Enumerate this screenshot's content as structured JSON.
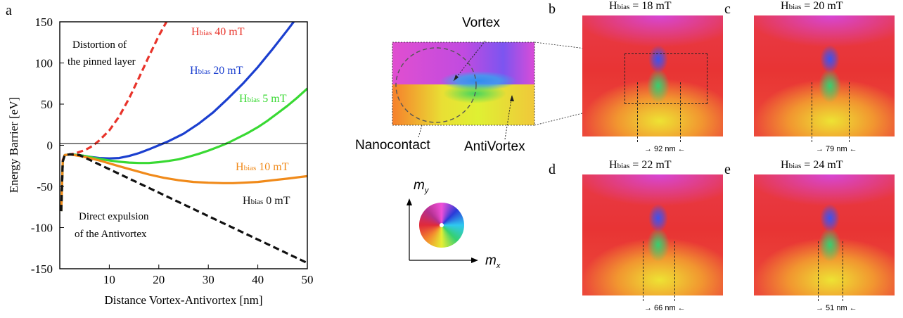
{
  "panel_letters": {
    "a": "a",
    "b": "b",
    "c": "c",
    "d": "d",
    "e": "e"
  },
  "chart_data": {
    "type": "line",
    "xlabel": "Distance Vortex-Antivortex [nm]",
    "ylabel": "Energy Barrier  [eV]",
    "xlim": [
      0,
      50
    ],
    "ylim": [
      -150,
      150
    ],
    "xticks": [
      "10",
      "20",
      "30",
      "40",
      "50"
    ],
    "yticks": [
      "150",
      "100",
      "50",
      "0",
      "-50",
      "-100",
      "-150"
    ],
    "series": [
      {
        "name_main": "H",
        "name_sub": "bias",
        "name_rest": " 40 mT",
        "color": "#e8332a",
        "dash": true,
        "x": [
          0.3,
          0.6,
          1,
          2,
          3,
          4,
          5,
          6,
          7,
          8,
          10,
          12,
          14,
          16,
          18,
          20,
          22
        ],
        "y": [
          -80,
          -18,
          -12,
          -11,
          -10,
          -8,
          -6,
          -3,
          1,
          6,
          18,
          35,
          57,
          82,
          108,
          133,
          155
        ]
      },
      {
        "name_main": "H",
        "name_sub": "bias",
        "name_rest": " 20 mT",
        "color": "#1b3fcf",
        "dash": false,
        "x": [
          0.3,
          0.6,
          1,
          2,
          4,
          6,
          8,
          10,
          12,
          14,
          16,
          18,
          20,
          22,
          25,
          28,
          31,
          34,
          37,
          40,
          43,
          46,
          48
        ],
        "y": [
          -80,
          -20,
          -12,
          -11,
          -12,
          -14,
          -15.5,
          -16,
          -15.5,
          -13,
          -9.5,
          -5,
          0,
          5,
          14,
          26,
          40,
          57,
          75,
          95,
          117,
          140,
          156
        ]
      },
      {
        "name_main": "H",
        "name_sub": "bias",
        "name_rest": "  5 mT",
        "color": "#39d933",
        "dash": false,
        "x": [
          0.3,
          0.6,
          1,
          2,
          4,
          6,
          8,
          10,
          12,
          14,
          16,
          18,
          20,
          22,
          24,
          26,
          28,
          30,
          32,
          34,
          36,
          38,
          40,
          42,
          44,
          46,
          48,
          50
        ],
        "y": [
          -80,
          -20,
          -12,
          -11,
          -12,
          -14,
          -16.5,
          -18.5,
          -20,
          -21,
          -21.5,
          -21.5,
          -20.5,
          -19,
          -17,
          -14,
          -10.5,
          -6.5,
          -2,
          3,
          9,
          15,
          22,
          30,
          39,
          48,
          58,
          69
        ]
      },
      {
        "name_main": "H",
        "name_sub": "bias",
        "name_rest": "  10 mT",
        "color": "#f08a1a",
        "dash": false,
        "x": [
          0.3,
          0.6,
          1,
          2,
          4,
          6,
          8,
          10,
          12,
          15,
          18,
          21,
          24,
          27,
          30,
          33,
          35,
          37,
          40,
          43,
          46,
          50
        ],
        "y": [
          -80,
          -20,
          -12,
          -11,
          -13,
          -15.5,
          -18.5,
          -22,
          -25.5,
          -30.5,
          -35.5,
          -39.5,
          -42.5,
          -44.5,
          -45.5,
          -46,
          -46,
          -45.5,
          -44.5,
          -42.5,
          -40.5,
          -37.5
        ]
      },
      {
        "name_main": "H",
        "name_sub": "bias",
        "name_rest": "  0 mT",
        "color": "#111111",
        "dash": true,
        "x": [
          0.3,
          0.6,
          1,
          2,
          4,
          50
        ],
        "y": [
          -80,
          -20,
          -12,
          -11,
          -12,
          -143
        ]
      }
    ],
    "annotations": {
      "top": [
        "Distortion of",
        "the pinned layer"
      ],
      "bottom": [
        "Direct expulsion",
        "of the Antivortex"
      ]
    }
  },
  "middle": {
    "vortex": "Vortex",
    "antivortex": "AntiVortex",
    "nanocontact": "Nanocontact",
    "axis_y_main": "m",
    "axis_y_sub": "y",
    "axis_x_main": "m",
    "axis_x_sub": "x"
  },
  "panels": [
    {
      "letter": "b",
      "h_main": "H",
      "h_sub": "bias",
      "h_rest": " = 18 mT",
      "scale": "92 nm",
      "colors": [
        "#e83434",
        "#f03c50",
        "#b44ad8",
        "#3b52f0",
        "#36d070",
        "#eeeb33",
        "#f38a2e"
      ]
    },
    {
      "letter": "c",
      "h_main": "H",
      "h_sub": "bias",
      "h_rest": " = 20 mT",
      "scale": "79 nm"
    },
    {
      "letter": "d",
      "h_main": "H",
      "h_sub": "bias",
      "h_rest": " = 22 mT",
      "scale": "66 nm"
    },
    {
      "letter": "e",
      "h_main": "H",
      "h_sub": "bias",
      "h_rest": " = 24 mT",
      "scale": "51 nm"
    }
  ]
}
